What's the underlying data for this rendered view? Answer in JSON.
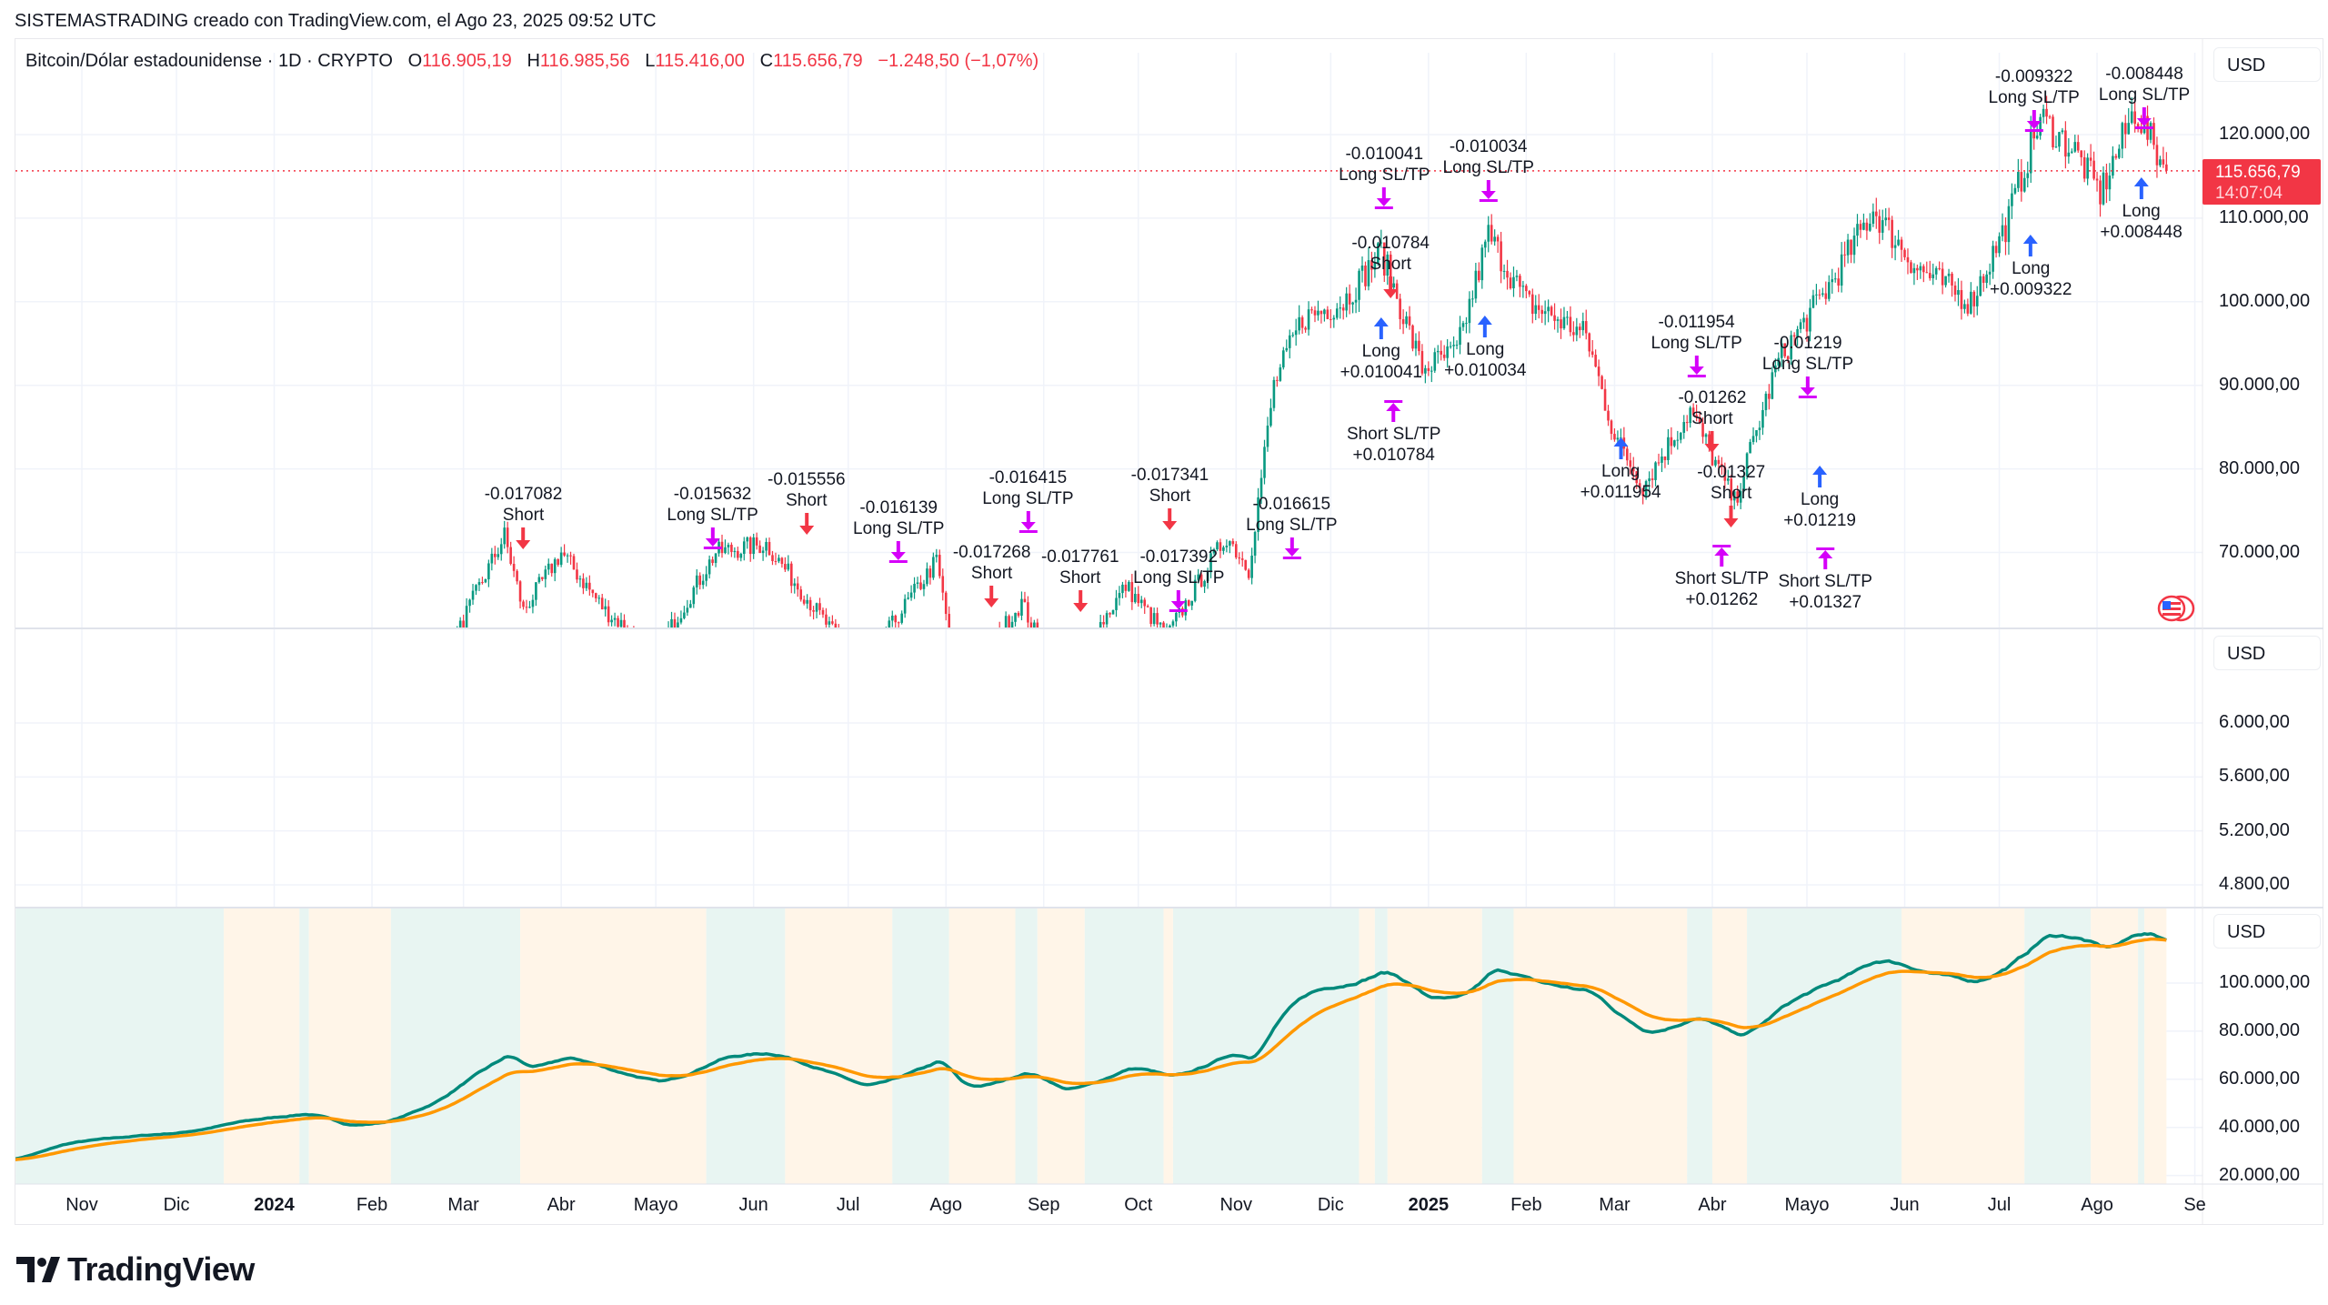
{
  "credit": "SISTEMASTRADING creado con TradingView.com, el Ago 23, 2025 09:52 UTC",
  "legend": {
    "symbol": "Bitcoin/Dólar estadounidense · 1D · CRYPTO",
    "o_label": "O",
    "o": "116.905,19",
    "h_label": "H",
    "h": "116.985,56",
    "l_label": "L",
    "l": "115.416,00",
    "c_label": "C",
    "c": "115.656,79",
    "change": "−1.248,50 (−1,07%)"
  },
  "price_tag": {
    "price": "115.656,79",
    "countdown": "14:07:04"
  },
  "colors": {
    "up": "#089981",
    "down": "#f23645",
    "long": "#2962ff",
    "sltp": "#d500f9",
    "fast_line": "#00897b",
    "slow_line": "#ff9800",
    "band_bull": "#e8f5f2",
    "band_bear": "#fff5e8",
    "price_tag": "#f23645"
  },
  "panes": {
    "main": {
      "currency": "USD",
      "ticks": [
        "120.000,00",
        "110.000,00",
        "100.000,00",
        "90.000,00",
        "80.000,00",
        "70.000,00"
      ],
      "tick_values": [
        120000,
        110000,
        100000,
        90000,
        80000,
        70000
      ]
    },
    "middle": {
      "currency": "USD",
      "ticks": [
        "6.000,00",
        "5.600,00",
        "5.200,00",
        "4.800,00"
      ],
      "tick_values": [
        6000,
        5600,
        5200,
        4800
      ]
    },
    "bottom": {
      "currency": "USD",
      "ticks": [
        "100.000,00",
        "80.000,00",
        "60.000,00",
        "40.000,00",
        "20.000,00"
      ],
      "tick_values": [
        100000,
        80000,
        60000,
        40000,
        20000
      ]
    }
  },
  "time_axis": [
    {
      "label": "Nov",
      "date": "2023-11-01"
    },
    {
      "label": "Dic",
      "date": "2023-12-01"
    },
    {
      "label": "2024",
      "date": "2024-01-01",
      "year": true
    },
    {
      "label": "Feb",
      "date": "2024-02-01"
    },
    {
      "label": "Mar",
      "date": "2024-03-01"
    },
    {
      "label": "Abr",
      "date": "2024-04-01"
    },
    {
      "label": "Mayo",
      "date": "2024-05-01"
    },
    {
      "label": "Jun",
      "date": "2024-06-01"
    },
    {
      "label": "Jul",
      "date": "2024-07-01"
    },
    {
      "label": "Ago",
      "date": "2024-08-01"
    },
    {
      "label": "Sep",
      "date": "2024-09-01"
    },
    {
      "label": "Oct",
      "date": "2024-10-01"
    },
    {
      "label": "Nov",
      "date": "2024-11-01"
    },
    {
      "label": "Dic",
      "date": "2024-12-01"
    },
    {
      "label": "2025",
      "date": "2025-01-01",
      "year": true
    },
    {
      "label": "Feb",
      "date": "2025-02-01"
    },
    {
      "label": "Mar",
      "date": "2025-03-01"
    },
    {
      "label": "Abr",
      "date": "2025-04-01"
    },
    {
      "label": "Mayo",
      "date": "2025-05-01"
    },
    {
      "label": "Jun",
      "date": "2025-06-01"
    },
    {
      "label": "Jul",
      "date": "2025-07-01"
    },
    {
      "label": "Ago",
      "date": "2025-08-01"
    },
    {
      "label": "Se",
      "date": "2025-09-01"
    }
  ],
  "chart_data": {
    "type": "candlestick",
    "interval": "1D",
    "last_price": 115656.79,
    "price_points": [
      [
        "2023-10-10",
        27500
      ],
      [
        "2023-10-25",
        34000
      ],
      [
        "2023-11-15",
        36500
      ],
      [
        "2023-12-01",
        38000
      ],
      [
        "2023-12-20",
        43000
      ],
      [
        "2024-01-10",
        46000
      ],
      [
        "2024-01-23",
        40000
      ],
      [
        "2024-02-05",
        43000
      ],
      [
        "2024-02-20",
        52000
      ],
      [
        "2024-03-01",
        62000
      ],
      [
        "2024-03-14",
        72000
      ],
      [
        "2024-03-20",
        63000
      ],
      [
        "2024-04-01",
        70000
      ],
      [
        "2024-04-15",
        63000
      ],
      [
        "2024-05-01",
        58000
      ],
      [
        "2024-05-20",
        70000
      ],
      [
        "2024-06-05",
        71000
      ],
      [
        "2024-06-25",
        61000
      ],
      [
        "2024-07-05",
        56000
      ],
      [
        "2024-07-29",
        69000
      ],
      [
        "2024-08-05",
        54000
      ],
      [
        "2024-08-25",
        64000
      ],
      [
        "2024-09-06",
        54000
      ],
      [
        "2024-09-27",
        66000
      ],
      [
        "2024-10-10",
        60000
      ],
      [
        "2024-10-29",
        72000
      ],
      [
        "2024-11-05",
        68000
      ],
      [
        "2024-11-13",
        90000
      ],
      [
        "2024-11-22",
        98000
      ],
      [
        "2024-12-05",
        100000
      ],
      [
        "2024-12-17",
        106000
      ],
      [
        "2024-12-30",
        92000
      ],
      [
        "2025-01-10",
        94000
      ],
      [
        "2025-01-20",
        108000
      ],
      [
        "2025-02-01",
        100000
      ],
      [
        "2025-02-20",
        96000
      ],
      [
        "2025-03-01",
        84000
      ],
      [
        "2025-03-10",
        78000
      ],
      [
        "2025-03-25",
        87000
      ],
      [
        "2025-04-08",
        76000
      ],
      [
        "2025-04-22",
        93000
      ],
      [
        "2025-05-10",
        103000
      ],
      [
        "2025-05-22",
        111000
      ],
      [
        "2025-06-05",
        104000
      ],
      [
        "2025-06-22",
        100000
      ],
      [
        "2025-07-03",
        109000
      ],
      [
        "2025-07-14",
        122000
      ],
      [
        "2025-07-25",
        118000
      ],
      [
        "2025-08-02",
        113000
      ],
      [
        "2025-08-13",
        123000
      ],
      [
        "2025-08-23",
        115657
      ]
    ],
    "regime_bands": [
      [
        "2023-10-11",
        "2023-12-16",
        "bull"
      ],
      [
        "2023-12-16",
        "2024-01-09",
        "bear"
      ],
      [
        "2024-01-09",
        "2024-01-12",
        "bull"
      ],
      [
        "2024-01-12",
        "2024-02-07",
        "bear"
      ],
      [
        "2024-02-07",
        "2024-03-19",
        "bull"
      ],
      [
        "2024-03-19",
        "2024-05-17",
        "bear"
      ],
      [
        "2024-05-17",
        "2024-06-11",
        "bull"
      ],
      [
        "2024-06-11",
        "2024-07-15",
        "bear"
      ],
      [
        "2024-07-15",
        "2024-08-02",
        "bull"
      ],
      [
        "2024-08-02",
        "2024-08-23",
        "bear"
      ],
      [
        "2024-08-23",
        "2024-08-30",
        "bull"
      ],
      [
        "2024-08-30",
        "2024-09-14",
        "bear"
      ],
      [
        "2024-09-14",
        "2024-10-09",
        "bull"
      ],
      [
        "2024-10-09",
        "2024-10-12",
        "bear"
      ],
      [
        "2024-10-12",
        "2024-12-10",
        "bull"
      ],
      [
        "2024-12-10",
        "2024-12-15",
        "bear"
      ],
      [
        "2024-12-15",
        "2024-12-19",
        "bull"
      ],
      [
        "2024-12-19",
        "2025-01-18",
        "bear"
      ],
      [
        "2025-01-18",
        "2025-01-28",
        "bull"
      ],
      [
        "2025-01-28",
        "2025-03-24",
        "bear"
      ],
      [
        "2025-03-24",
        "2025-04-01",
        "bull"
      ],
      [
        "2025-04-01",
        "2025-04-12",
        "bear"
      ],
      [
        "2025-04-12",
        "2025-05-31",
        "bull"
      ],
      [
        "2025-05-31",
        "2025-07-09",
        "bear"
      ],
      [
        "2025-07-09",
        "2025-07-30",
        "bull"
      ],
      [
        "2025-07-30",
        "2025-08-14",
        "bear"
      ],
      [
        "2025-08-14",
        "2025-08-16",
        "bull"
      ],
      [
        "2025-08-16",
        "2025-08-23",
        "bear"
      ]
    ],
    "signals": [
      {
        "date": "2024-03-20",
        "price": 78200,
        "lines": [
          "-0.017082",
          "Short"
        ],
        "marker": "short-entry"
      },
      {
        "date": "2024-05-19",
        "price": 78200,
        "lines": [
          "-0.015632",
          "Long SL/TP"
        ],
        "marker": "long-exit"
      },
      {
        "date": "2024-06-12",
        "price": 80000,
        "lines": [
          "-0.015556",
          "Short"
        ],
        "marker": "short-entry"
      },
      {
        "date": "2024-07-17",
        "price": 76600,
        "lines": [
          "-0.016139",
          "Long SL/TP"
        ],
        "marker": "long-exit"
      },
      {
        "date": "2024-08-04",
        "price": 71250,
        "lines": [
          "-0.017268",
          "Short"
        ],
        "marker": "short-entry"
      },
      {
        "date": "2024-08-27",
        "price": 75000,
        "lines": [
          "-0.016415",
          "Long SL/TP"
        ],
        "marker": "long-exit"
      },
      {
        "date": "2024-09-01",
        "price": 69450,
        "lines": [
          "-0.017761",
          "Short"
        ],
        "marker": "short-entry"
      },
      {
        "date": "2024-09-15",
        "price": 70700,
        "lines": [
          "-0.017392",
          "Long SL/TP"
        ],
        "marker": "long-exit"
      },
      {
        "date": "2024-10-11",
        "price": 71400,
        "lines": [
          "-0.017341",
          "Short"
        ],
        "marker": "short-entry"
      },
      {
        "date": "2024-10-15",
        "price": 77000,
        "lines": [
          "-0.016615",
          "Long SL/TP"
        ],
        "marker": "long-exit"
      },
      {
        "date": "2024-12-18",
        "price": 118900,
        "lines": [
          "-0.010041",
          "Long SL/TP"
        ],
        "marker": "long-exit"
      },
      {
        "date": "2024-12-20",
        "price": 108200,
        "lines": [
          "-0.010784",
          "Short"
        ],
        "marker": "short-entry"
      },
      {
        "date": "2024-12-17",
        "price": 97500,
        "lines": [
          "Long",
          "+0.010041"
        ],
        "marker": "long-entry"
      },
      {
        "date": "2024-12-21",
        "price": 90200,
        "lines": [
          "Short SL/TP",
          "+0.010784"
        ],
        "marker": "short-exit"
      },
      {
        "date": "2025-01-20",
        "price": 119800,
        "lines": [
          "-0.010034",
          "Long SL/TP"
        ],
        "marker": "long-exit"
      },
      {
        "date": "2025-01-19",
        "price": 93750,
        "lines": [
          "Long",
          "+0.010034"
        ],
        "marker": "long-entry"
      },
      {
        "date": "2025-03-27",
        "price": 98750,
        "lines": [
          "-0.011954",
          "Long SL/TP"
        ],
        "marker": "long-exit"
      },
      {
        "date": "2025-04-14",
        "price": 96250,
        "lines": [
          "-0.01219",
          "Long SL/TP"
        ],
        "marker": "long-exit"
      },
      {
        "date": "2025-04-01",
        "price": 95000,
        "lines": [
          "-0.01262",
          "Short"
        ],
        "marker": "short-entry"
      },
      {
        "date": "2025-04-07",
        "price": 91250,
        "lines": [
          "-0.01327",
          "Short"
        ],
        "marker": "short-entry"
      },
      {
        "date": "2025-03-26",
        "price": 80500,
        "lines": [
          "Long",
          "+0.011954"
        ],
        "marker": "long-entry"
      },
      {
        "date": "2025-04-04",
        "price": 75500,
        "lines": [
          "Short SL/TP",
          "+0.01262"
        ],
        "marker": "short-exit"
      },
      {
        "date": "2025-04-12",
        "price": 77100,
        "lines": [
          "Long",
          "+0.01219"
        ],
        "marker": "long-entry"
      },
      {
        "date": "2025-04-08",
        "price": 70000,
        "lines": [
          "Short SL/TP",
          "+0.01327"
        ],
        "marker": "short-exit"
      },
      {
        "date": "2025-07-12",
        "price": 129500,
        "lines": [
          "-0.009322",
          "Long SL/TP"
        ],
        "marker": "long-exit"
      },
      {
        "date": "2025-07-11",
        "price": 104800,
        "lines": [
          "Long",
          "+0.009322"
        ],
        "marker": "long-entry"
      },
      {
        "date": "2025-08-16",
        "price": 129800,
        "lines": [
          "-0.008448",
          "Long SL/TP"
        ],
        "marker": "long-exit"
      },
      {
        "date": "2025-08-15",
        "price": 111600,
        "lines": [
          "Long",
          "+0.008448"
        ],
        "marker": "long-entry"
      }
    ]
  },
  "logo": {
    "text": "TradingView",
    "icon": "tradingview-logo-icon"
  },
  "flag_icon": "us-flag-icon"
}
